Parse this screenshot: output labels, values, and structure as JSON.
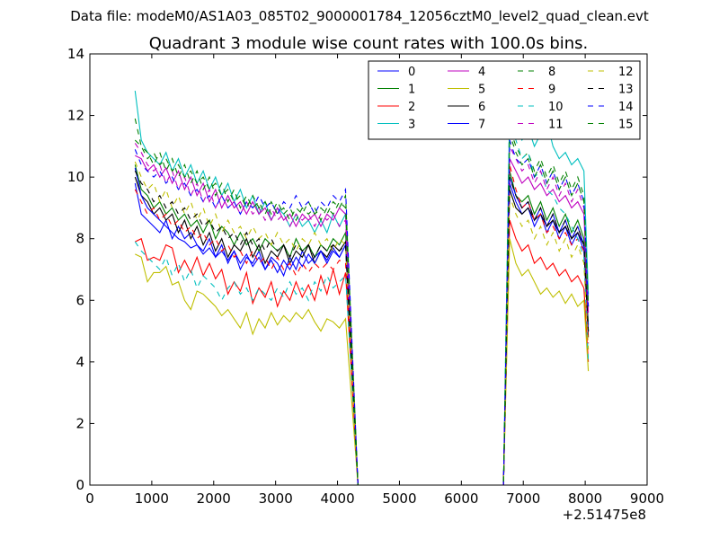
{
  "suptitle": "Data file: modeM0/AS1A03_085T02_9000001784_12056cztM0_level2_quad_clean.evt",
  "chart_data": {
    "type": "line",
    "title": "Quadrant 3 module wise count rates with 100.0s bins.",
    "xlabel": "",
    "ylabel": "",
    "x_offset_label": "+2.51475e8",
    "xlim": [
      0,
      9000
    ],
    "ylim": [
      0,
      14
    ],
    "x_ticks": [
      0,
      1000,
      2000,
      3000,
      4000,
      5000,
      6000,
      7000,
      8000,
      9000
    ],
    "y_ticks": [
      0,
      2,
      4,
      6,
      8,
      10,
      12,
      14
    ],
    "segments": [
      {
        "x_start": 730,
        "x_end": 4130,
        "step": 100
      },
      {
        "x_start": 6780,
        "x_end": 7980,
        "step": 100
      }
    ],
    "drop": {
      "x_last_pre": 4130,
      "x_zero_start": 4330,
      "x_zero_end": 6680,
      "x_rise_end": 6780,
      "x_final": 8050
    },
    "legend": {
      "location": "top-right",
      "columns": 4
    },
    "series": [
      {
        "name": "0",
        "color": "#0000ff",
        "style": "solid",
        "seg1": [
          9.8,
          8.8,
          8.6,
          8.4,
          8.2,
          8.6,
          8.0,
          8.4,
          8.0,
          8.2,
          7.8,
          7.6,
          8.0,
          7.4,
          7.8,
          7.2,
          7.6,
          7.0,
          7.4,
          7.2,
          7.6,
          7.0,
          7.4,
          7.2,
          6.8,
          7.4,
          7.0,
          7.6,
          7.2,
          7.4,
          7.6,
          7.2,
          7.6,
          7.4,
          7.8
        ],
        "seg2": [
          9.8,
          9.2,
          8.8,
          9.0,
          8.4,
          8.8,
          8.2,
          8.6,
          8.0,
          8.4,
          7.8,
          8.2,
          7.6
        ],
        "tail": 5.0
      },
      {
        "name": "1",
        "color": "#008000",
        "style": "solid",
        "seg1": [
          10.4,
          9.6,
          9.4,
          9.0,
          9.2,
          8.8,
          9.0,
          8.6,
          8.8,
          8.4,
          8.6,
          8.2,
          8.6,
          8.0,
          8.4,
          8.2,
          7.8,
          8.2,
          7.8,
          8.0,
          7.6,
          8.0,
          7.8,
          7.6,
          7.8,
          7.4,
          8.0,
          7.6,
          7.8,
          7.4,
          7.8,
          7.6,
          8.0,
          7.8,
          8.2
        ],
        "seg2": [
          10.2,
          9.4,
          9.2,
          9.4,
          8.8,
          9.2,
          8.6,
          9.0,
          8.4,
          8.8,
          8.2,
          8.6,
          8.0
        ],
        "tail": 5.2
      },
      {
        "name": "2",
        "color": "#ff0000",
        "style": "solid",
        "seg1": [
          7.9,
          8.0,
          7.3,
          7.4,
          7.3,
          7.8,
          7.7,
          6.9,
          7.3,
          6.9,
          7.4,
          6.8,
          7.2,
          6.7,
          7.0,
          6.2,
          6.6,
          6.3,
          6.9,
          5.9,
          6.4,
          6.1,
          6.6,
          5.8,
          6.3,
          6.0,
          6.6,
          6.1,
          6.5,
          6.0,
          6.8,
          6.2,
          7.0,
          6.2,
          6.9
        ],
        "seg2": [
          8.6,
          8.0,
          7.6,
          7.8,
          7.2,
          7.4,
          7.0,
          7.2,
          6.8,
          7.0,
          6.6,
          6.8,
          6.4
        ],
        "tail": 4.0
      },
      {
        "name": "3",
        "color": "#00bfbf",
        "style": "solid",
        "seg1": [
          12.8,
          11.2,
          10.8,
          10.6,
          10.4,
          10.8,
          10.2,
          10.6,
          10.0,
          10.4,
          9.8,
          10.2,
          9.6,
          10.0,
          9.4,
          9.8,
          9.2,
          9.6,
          9.0,
          9.4,
          8.8,
          9.2,
          8.6,
          9.0,
          8.8,
          8.4,
          8.8,
          8.4,
          8.6,
          8.2,
          8.6,
          8.2,
          8.8,
          8.4,
          8.8
        ],
        "seg2": [
          12.2,
          11.6,
          11.2,
          11.6,
          11.0,
          11.4,
          11.8,
          11.0,
          10.6,
          10.8,
          10.4,
          10.6,
          10.2
        ],
        "tail": 6.2
      },
      {
        "name": "4",
        "color": "#bf00bf",
        "style": "solid",
        "seg1": [
          10.7,
          10.6,
          10.2,
          10.4,
          10.0,
          10.3,
          9.8,
          10.2,
          9.6,
          10.0,
          9.4,
          9.8,
          9.2,
          9.6,
          9.0,
          9.4,
          9.0,
          9.2,
          8.8,
          9.2,
          8.8,
          9.0,
          8.6,
          9.0,
          8.6,
          8.8,
          8.4,
          8.8,
          8.6,
          8.8,
          8.4,
          8.8,
          8.6,
          9.0,
          8.8
        ],
        "seg2": [
          10.6,
          10.2,
          9.8,
          10.0,
          9.6,
          9.8,
          9.4,
          9.6,
          9.2,
          9.4,
          9.0,
          9.2,
          8.8
        ],
        "tail": 5.6
      },
      {
        "name": "5",
        "color": "#bfbf00",
        "style": "solid",
        "seg1": [
          7.5,
          7.4,
          6.6,
          6.9,
          6.9,
          7.1,
          6.5,
          6.6,
          6.0,
          5.7,
          6.3,
          6.2,
          6.0,
          5.8,
          5.5,
          5.7,
          5.4,
          5.1,
          5.6,
          4.9,
          5.4,
          5.1,
          5.6,
          5.2,
          5.5,
          5.3,
          5.6,
          5.4,
          5.7,
          5.3,
          5.0,
          5.4,
          5.3,
          5.1,
          5.4
        ],
        "seg2": [
          8.0,
          7.2,
          6.8,
          7.0,
          6.6,
          6.2,
          6.4,
          6.1,
          6.3,
          5.9,
          6.2,
          5.8,
          6.0
        ],
        "tail": 3.7
      },
      {
        "name": "6",
        "color": "#000000",
        "style": "solid",
        "seg1": [
          10.0,
          9.4,
          9.2,
          8.8,
          9.0,
          8.6,
          8.8,
          8.2,
          8.6,
          8.0,
          8.4,
          7.8,
          8.2,
          7.6,
          8.0,
          7.4,
          7.8,
          7.6,
          8.0,
          7.4,
          7.8,
          7.2,
          7.6,
          7.4,
          7.8,
          7.2,
          7.6,
          7.4,
          7.8,
          7.2,
          7.6,
          7.4,
          7.8,
          7.6,
          7.9
        ],
        "seg2": [
          9.6,
          9.0,
          8.8,
          9.0,
          8.6,
          8.8,
          8.4,
          8.6,
          8.2,
          8.4,
          8.0,
          8.2,
          7.8
        ],
        "tail": 4.8
      },
      {
        "name": "7",
        "color": "#0000ff",
        "style": "solid",
        "seg1": [
          10.3,
          9.4,
          9.0,
          8.8,
          8.6,
          8.4,
          8.2,
          8.0,
          7.9,
          7.7,
          7.8,
          7.5,
          7.7,
          7.4,
          7.6,
          7.3,
          7.6,
          7.2,
          7.5,
          7.1,
          7.4,
          7.0,
          7.3,
          6.9,
          7.3,
          7.0,
          7.4,
          7.1,
          7.5,
          7.2,
          7.6,
          7.3,
          7.7,
          7.4,
          7.8
        ],
        "seg2": [
          10.0,
          9.4,
          9.0,
          9.2,
          8.6,
          9.0,
          8.4,
          8.8,
          8.2,
          8.6,
          8.0,
          8.4,
          7.8
        ],
        "tail": 5.0
      },
      {
        "name": "8",
        "color": "#008000",
        "style": "dashed",
        "seg1": [
          11.9,
          11.0,
          10.8,
          10.4,
          10.8,
          10.2,
          10.6,
          10.0,
          10.4,
          9.8,
          10.2,
          9.6,
          10.0,
          9.4,
          9.8,
          9.2,
          9.6,
          9.0,
          9.4,
          9.0,
          9.2,
          8.8,
          9.2,
          8.8,
          9.0,
          8.6,
          9.0,
          8.8,
          9.2,
          8.8,
          9.0,
          8.8,
          9.2,
          9.0,
          9.4
        ],
        "seg2": [
          11.6,
          11.0,
          10.6,
          10.8,
          10.2,
          10.6,
          10.0,
          10.4,
          9.8,
          10.2,
          9.6,
          10.0,
          9.4
        ],
        "tail": 5.8
      },
      {
        "name": "9",
        "color": "#ff0000",
        "style": "dashed",
        "seg1": [
          9.6,
          9.2,
          8.8,
          9.0,
          8.6,
          8.8,
          8.4,
          8.6,
          8.2,
          8.4,
          8.0,
          8.2,
          7.8,
          8.0,
          7.6,
          7.8,
          7.4,
          7.6,
          7.2,
          7.6,
          7.2,
          7.4,
          7.0,
          7.4,
          7.0,
          7.2,
          6.8,
          7.2,
          6.9,
          7.2,
          7.0,
          7.2,
          7.0,
          7.3,
          7.2
        ],
        "seg2": [
          10.4,
          9.6,
          9.0,
          9.2,
          8.6,
          8.8,
          8.2,
          8.4,
          8.0,
          8.2,
          7.8,
          8.0,
          7.6
        ],
        "tail": 4.6
      },
      {
        "name": "10",
        "color": "#00bfbf",
        "style": "dashed",
        "seg1": [
          7.9,
          7.6,
          7.4,
          7.2,
          7.0,
          7.4,
          6.8,
          7.2,
          6.6,
          7.0,
          6.4,
          6.8,
          6.6,
          6.4,
          6.0,
          6.4,
          6.6,
          6.2,
          6.4,
          6.0,
          6.4,
          6.2,
          6.0,
          6.4,
          6.1,
          6.6,
          6.2,
          6.4,
          6.0,
          6.6,
          6.3,
          6.8,
          6.4,
          6.6,
          6.8
        ],
        "seg2": [
          12.5,
          11.2,
          10.6,
          10.8,
          10.0,
          10.2,
          9.6,
          9.4,
          9.0,
          8.8,
          8.4,
          8.0,
          7.4
        ],
        "tail": 4.0
      },
      {
        "name": "11",
        "color": "#bf00bf",
        "style": "dashed",
        "seg1": [
          11.1,
          10.8,
          10.4,
          10.2,
          10.4,
          9.8,
          10.2,
          9.6,
          10.0,
          9.4,
          9.8,
          9.2,
          9.6,
          9.0,
          9.4,
          9.0,
          9.2,
          8.8,
          9.2,
          8.8,
          9.0,
          8.6,
          9.0,
          8.6,
          8.8,
          8.4,
          8.8,
          8.6,
          8.8,
          8.4,
          8.8,
          8.6,
          8.8,
          8.4,
          8.6
        ],
        "seg2": [
          11.0,
          10.6,
          10.2,
          10.4,
          9.8,
          10.2,
          9.6,
          10.0,
          9.4,
          9.8,
          9.2,
          9.6,
          9.0
        ],
        "tail": 5.6
      },
      {
        "name": "12",
        "color": "#bfbf00",
        "style": "dashed",
        "seg1": [
          10.5,
          10.0,
          9.6,
          9.8,
          9.2,
          9.6,
          9.0,
          9.4,
          8.8,
          9.2,
          8.6,
          9.0,
          8.4,
          8.8,
          8.2,
          8.6,
          8.2,
          8.4,
          8.0,
          8.4,
          8.0,
          8.2,
          7.8,
          8.2,
          7.8,
          8.0,
          7.6,
          8.0,
          7.8,
          8.2,
          7.8,
          8.0,
          7.6,
          8.0,
          7.8
        ],
        "seg2": [
          9.4,
          8.8,
          8.4,
          8.6,
          8.0,
          8.4,
          7.8,
          8.2,
          7.6,
          8.0,
          7.4,
          7.8,
          7.2
        ],
        "tail": 4.4
      },
      {
        "name": "13",
        "color": "#000000",
        "style": "dashed",
        "seg1": [
          10.2,
          9.8,
          9.6,
          9.2,
          9.4,
          9.0,
          9.2,
          8.8,
          9.0,
          8.6,
          8.8,
          8.4,
          8.6,
          8.2,
          8.4,
          8.0,
          8.2,
          7.8,
          8.2,
          7.8,
          8.0,
          7.6,
          8.0,
          7.6,
          7.8,
          7.4,
          7.8,
          7.6,
          7.8,
          7.4,
          7.8,
          7.6,
          7.8,
          7.6,
          7.8
        ],
        "seg2": [
          10.0,
          9.4,
          9.0,
          9.2,
          8.6,
          9.0,
          8.4,
          8.8,
          8.2,
          8.6,
          8.0,
          8.4,
          7.8
        ],
        "tail": 5.0
      },
      {
        "name": "14",
        "color": "#0000ff",
        "style": "dashed",
        "seg1": [
          10.9,
          10.4,
          10.2,
          10.0,
          10.2,
          9.8,
          10.0,
          9.6,
          9.8,
          9.4,
          9.6,
          9.2,
          9.4,
          9.0,
          9.4,
          9.0,
          9.2,
          8.8,
          9.2,
          9.0,
          9.4,
          9.0,
          9.2,
          8.8,
          9.2,
          9.0,
          9.4,
          9.0,
          9.2,
          8.8,
          9.2,
          9.0,
          9.4,
          9.2,
          9.6
        ],
        "seg2": [
          11.2,
          10.6,
          10.4,
          10.6,
          10.0,
          10.4,
          9.8,
          10.2,
          9.6,
          10.0,
          9.4,
          9.8,
          9.2
        ],
        "tail": 5.8
      },
      {
        "name": "15",
        "color": "#008000",
        "style": "dashed",
        "seg1": [
          11.2,
          11.0,
          10.6,
          10.8,
          10.4,
          10.6,
          10.2,
          10.4,
          10.0,
          10.2,
          9.8,
          10.0,
          9.6,
          9.8,
          9.4,
          9.6,
          9.2,
          9.4,
          9.0,
          9.4,
          9.0,
          9.2,
          8.8,
          9.2,
          8.8,
          9.0,
          8.6,
          9.0,
          8.8,
          9.0,
          8.6,
          9.0,
          8.8,
          9.2,
          9.0
        ],
        "seg2": [
          11.4,
          10.8,
          10.4,
          10.6,
          10.0,
          10.4,
          9.8,
          10.2,
          9.6,
          10.0,
          9.4,
          9.8,
          9.2
        ],
        "tail": 5.8
      }
    ]
  }
}
